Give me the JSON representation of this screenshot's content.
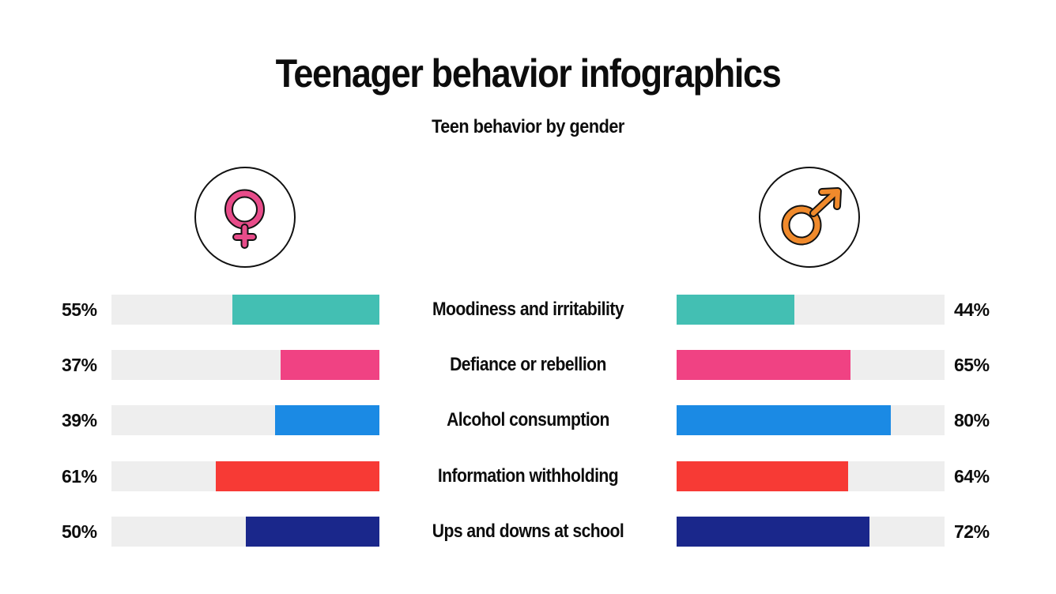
{
  "header": {
    "title": "Teenager behavior infographics",
    "subtitle": "Teen behavior by gender"
  },
  "icons": {
    "female": {
      "name": "female-symbol-icon",
      "color": "#E84C8A",
      "side": "left"
    },
    "male": {
      "name": "male-symbol-icon",
      "color": "#F08A2C",
      "side": "right"
    }
  },
  "colors": {
    "track": "#EEEEEE",
    "teal": "#43BFB3",
    "pink": "#F04283",
    "blue": "#1B8AE4",
    "red": "#F73A35",
    "navy": "#1A278B"
  },
  "rows": [
    {
      "label": "Moodiness and irritability",
      "female": 55,
      "female_label": "55%",
      "male": 44,
      "male_label": "44%",
      "color": "#43BFB3"
    },
    {
      "label": "Defiance or rebellion",
      "female": 37,
      "female_label": "37%",
      "male": 65,
      "male_label": "65%",
      "color": "#F04283"
    },
    {
      "label": "Alcohol consumption",
      "female": 39,
      "female_label": "39%",
      "male": 80,
      "male_label": "80%",
      "color": "#1B8AE4"
    },
    {
      "label": "Information withholding",
      "female": 61,
      "female_label": "61%",
      "male": 64,
      "male_label": "64%",
      "color": "#F73A35"
    },
    {
      "label": "Ups and downs at school",
      "female": 50,
      "female_label": "50%",
      "male": 72,
      "male_label": "72%",
      "color": "#1A278B"
    }
  ],
  "chart_data": {
    "type": "bar",
    "title": "Teenager behavior infographics",
    "subtitle": "Teen behavior by gender",
    "orientation": "horizontal-butterfly",
    "categories": [
      "Moodiness and irritability",
      "Defiance or rebellion",
      "Alcohol consumption",
      "Information withholding",
      "Ups and downs at school"
    ],
    "series": [
      {
        "name": "Female",
        "values": [
          55,
          37,
          39,
          61,
          50
        ],
        "side": "left"
      },
      {
        "name": "Male",
        "values": [
          44,
          65,
          80,
          64,
          72
        ],
        "side": "right"
      }
    ],
    "xlim": [
      0,
      100
    ],
    "unit": "%",
    "grid": false,
    "legend": "gender symbols above each side (female left, male right)"
  }
}
